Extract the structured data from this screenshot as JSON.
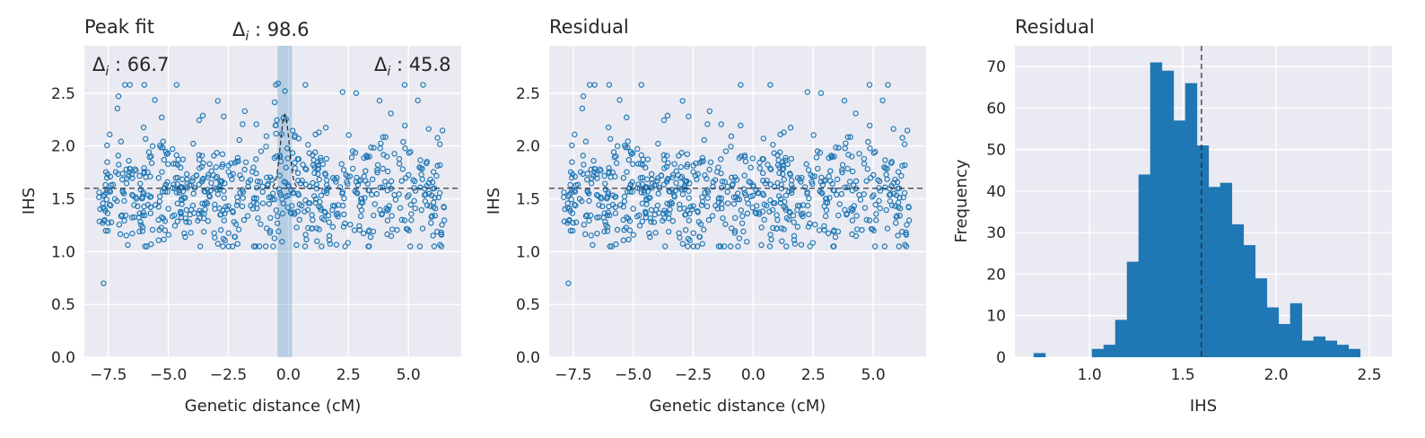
{
  "chart_data": [
    {
      "type": "scatter",
      "title": "Peak fit",
      "xlabel": "Genetic distance (cM)",
      "ylabel": "IHS",
      "xlim": [
        -8.5,
        7.2
      ],
      "ylim": [
        0,
        2.95
      ],
      "xticks": [
        -7.5,
        -5.0,
        -2.5,
        0.0,
        2.5,
        5.0
      ],
      "xtick_labels": [
        "−7.5",
        "−5.0",
        "−2.5",
        "0.0",
        "2.5",
        "5.0"
      ],
      "yticks": [
        0.0,
        0.5,
        1.0,
        1.5,
        2.0,
        2.5
      ],
      "ytick_labels": [
        "0.0",
        "0.5",
        "1.0",
        "1.5",
        "2.0",
        "2.5"
      ],
      "baseline": 1.6,
      "peak_center": -0.15,
      "peak_height": 0.7,
      "peak_band": [
        -0.45,
        0.15
      ],
      "annotations": [
        {
          "label": "Δ",
          "sub": "i",
          "value": " : 66.7",
          "position": "top-left"
        },
        {
          "label": "Δ",
          "sub": "i",
          "value": " : 98.6",
          "position": "top-center-above"
        },
        {
          "label": "Δ",
          "sub": "i",
          "value": " : 45.8",
          "position": "top-right"
        }
      ],
      "x_range_points": [
        -7.9,
        6.5
      ],
      "n_points": 720
    },
    {
      "type": "scatter",
      "title": "Residual",
      "xlabel": "Genetic distance (cM)",
      "ylabel": "IHS",
      "xlim": [
        -8.5,
        7.2
      ],
      "ylim": [
        0,
        2.95
      ],
      "xticks": [
        -7.5,
        -5.0,
        -2.5,
        0.0,
        2.5,
        5.0
      ],
      "xtick_labels": [
        "−7.5",
        "−5.0",
        "−2.5",
        "0.0",
        "2.5",
        "5.0"
      ],
      "yticks": [
        0.0,
        0.5,
        1.0,
        1.5,
        2.0,
        2.5
      ],
      "ytick_labels": [
        "0.0",
        "0.5",
        "1.0",
        "1.5",
        "2.0",
        "2.5"
      ],
      "baseline": 1.6,
      "n_points": 720
    },
    {
      "type": "histogram",
      "title": "Residual",
      "xlabel": "IHS",
      "ylabel": "Frequency",
      "xlim": [
        0.6,
        2.62
      ],
      "ylim": [
        0,
        75
      ],
      "xticks": [
        1.0,
        1.5,
        2.0,
        2.5
      ],
      "xtick_labels": [
        "1.0",
        "1.5",
        "2.0",
        "2.5"
      ],
      "yticks": [
        0,
        10,
        20,
        30,
        40,
        50,
        60,
        70
      ],
      "ytick_labels": [
        "0",
        "10",
        "20",
        "30",
        "40",
        "50",
        "60",
        "70"
      ],
      "vline": 1.6,
      "bin_start": 0.7,
      "bin_width": 0.0625,
      "counts": [
        1,
        0,
        0,
        0,
        0,
        2,
        3,
        9,
        23,
        44,
        71,
        69,
        57,
        66,
        51,
        41,
        42,
        32,
        27,
        19,
        12,
        8,
        13,
        4,
        5,
        4,
        3,
        2
      ]
    }
  ]
}
